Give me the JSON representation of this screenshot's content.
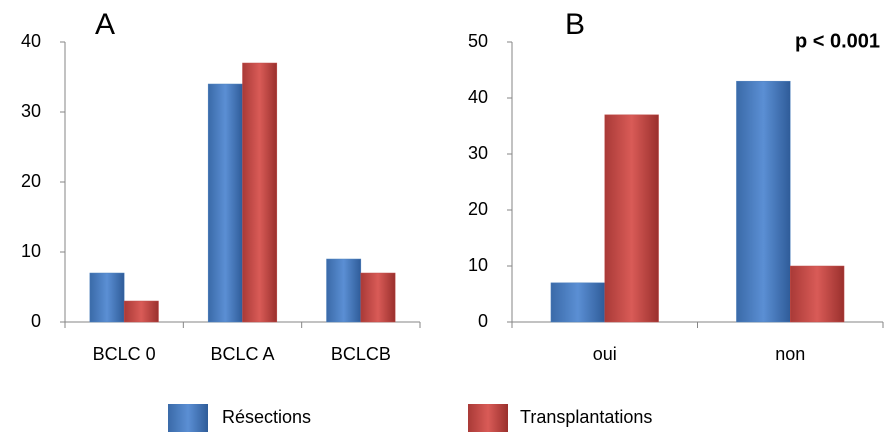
{
  "chart_data": [
    {
      "type": "bar",
      "title": "A",
      "categories": [
        "BCLC 0",
        "BCLC A",
        "BCLCB"
      ],
      "series": [
        {
          "name": "Résections",
          "color": "#4f81bd",
          "values": [
            7,
            34,
            9
          ]
        },
        {
          "name": "Transplantations",
          "color": "#c0504d",
          "values": [
            3,
            37,
            7
          ]
        }
      ],
      "ylim": [
        0,
        40
      ],
      "yticks": [
        0,
        10,
        20,
        30,
        40
      ],
      "grid": false
    },
    {
      "type": "bar",
      "title": "B",
      "annotation": "p < 0.001",
      "categories": [
        "oui",
        "non"
      ],
      "series": [
        {
          "color": "#4f81bd",
          "values": [
            7,
            43
          ]
        },
        {
          "color": "#c0504d",
          "values": [
            37,
            10
          ]
        }
      ],
      "ylim": [
        0,
        50
      ],
      "yticks": [
        0,
        10,
        20,
        30,
        40,
        50
      ],
      "grid": false
    }
  ]
}
